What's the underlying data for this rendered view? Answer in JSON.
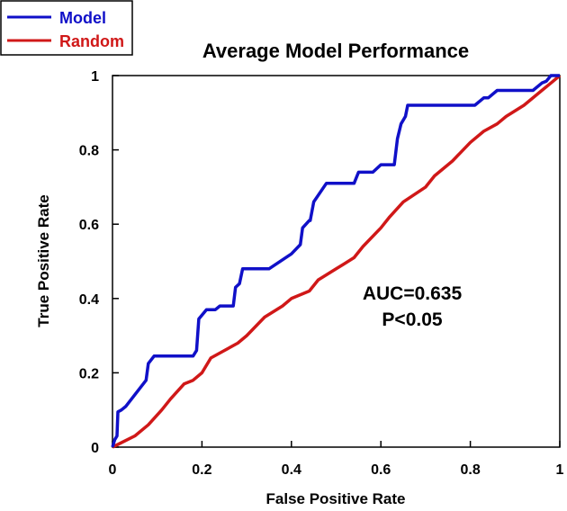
{
  "chart_data": {
    "type": "line",
    "title": "Average Model Performance",
    "xlabel": "False Positive Rate",
    "ylabel": "True Positive Rate",
    "xlim": [
      0,
      1
    ],
    "ylim": [
      0,
      1
    ],
    "x_ticks": [
      "0",
      "0.2",
      "0.4",
      "0.6",
      "0.8",
      "1"
    ],
    "y_ticks": [
      "0",
      "0.2",
      "0.4",
      "0.6",
      "0.8",
      "1"
    ],
    "grid": false,
    "legend_position": "top-left",
    "annotations": [
      "AUC=0.635",
      "P<0.05"
    ],
    "series": [
      {
        "name": "Model",
        "color": "#1010c8",
        "x": [
          0.0,
          0.005,
          0.01,
          0.012,
          0.02,
          0.03,
          0.075,
          0.08,
          0.093,
          0.18,
          0.188,
          0.193,
          0.21,
          0.23,
          0.24,
          0.27,
          0.275,
          0.284,
          0.291,
          0.35,
          0.4,
          0.42,
          0.425,
          0.44,
          0.442,
          0.45,
          0.478,
          0.5,
          0.54,
          0.55,
          0.582,
          0.6,
          0.63,
          0.637,
          0.645,
          0.655,
          0.66,
          0.665,
          0.81,
          0.83,
          0.84,
          0.86,
          0.87,
          0.94,
          0.96,
          0.97,
          0.98,
          1.0
        ],
        "y": [
          0.0,
          0.02,
          0.03,
          0.095,
          0.1,
          0.11,
          0.18,
          0.225,
          0.245,
          0.245,
          0.26,
          0.345,
          0.37,
          0.37,
          0.38,
          0.38,
          0.43,
          0.44,
          0.48,
          0.48,
          0.52,
          0.545,
          0.59,
          0.61,
          0.61,
          0.66,
          0.71,
          0.71,
          0.71,
          0.74,
          0.74,
          0.76,
          0.76,
          0.83,
          0.87,
          0.89,
          0.92,
          0.92,
          0.92,
          0.94,
          0.94,
          0.96,
          0.96,
          0.96,
          0.98,
          0.985,
          1.0,
          1.0
        ]
      },
      {
        "name": "Random",
        "color": "#d01818",
        "x": [
          0.0,
          0.05,
          0.08,
          0.11,
          0.13,
          0.16,
          0.18,
          0.2,
          0.22,
          0.25,
          0.28,
          0.3,
          0.34,
          0.38,
          0.4,
          0.44,
          0.46,
          0.5,
          0.54,
          0.56,
          0.6,
          0.62,
          0.65,
          0.7,
          0.72,
          0.76,
          0.8,
          0.83,
          0.86,
          0.88,
          0.92,
          0.96,
          0.98,
          1.0
        ],
        "y": [
          0.0,
          0.03,
          0.06,
          0.1,
          0.13,
          0.17,
          0.18,
          0.2,
          0.24,
          0.26,
          0.28,
          0.3,
          0.35,
          0.38,
          0.4,
          0.42,
          0.45,
          0.48,
          0.51,
          0.54,
          0.59,
          0.62,
          0.66,
          0.7,
          0.73,
          0.77,
          0.82,
          0.85,
          0.87,
          0.89,
          0.92,
          0.96,
          0.98,
          1.0
        ]
      }
    ]
  }
}
